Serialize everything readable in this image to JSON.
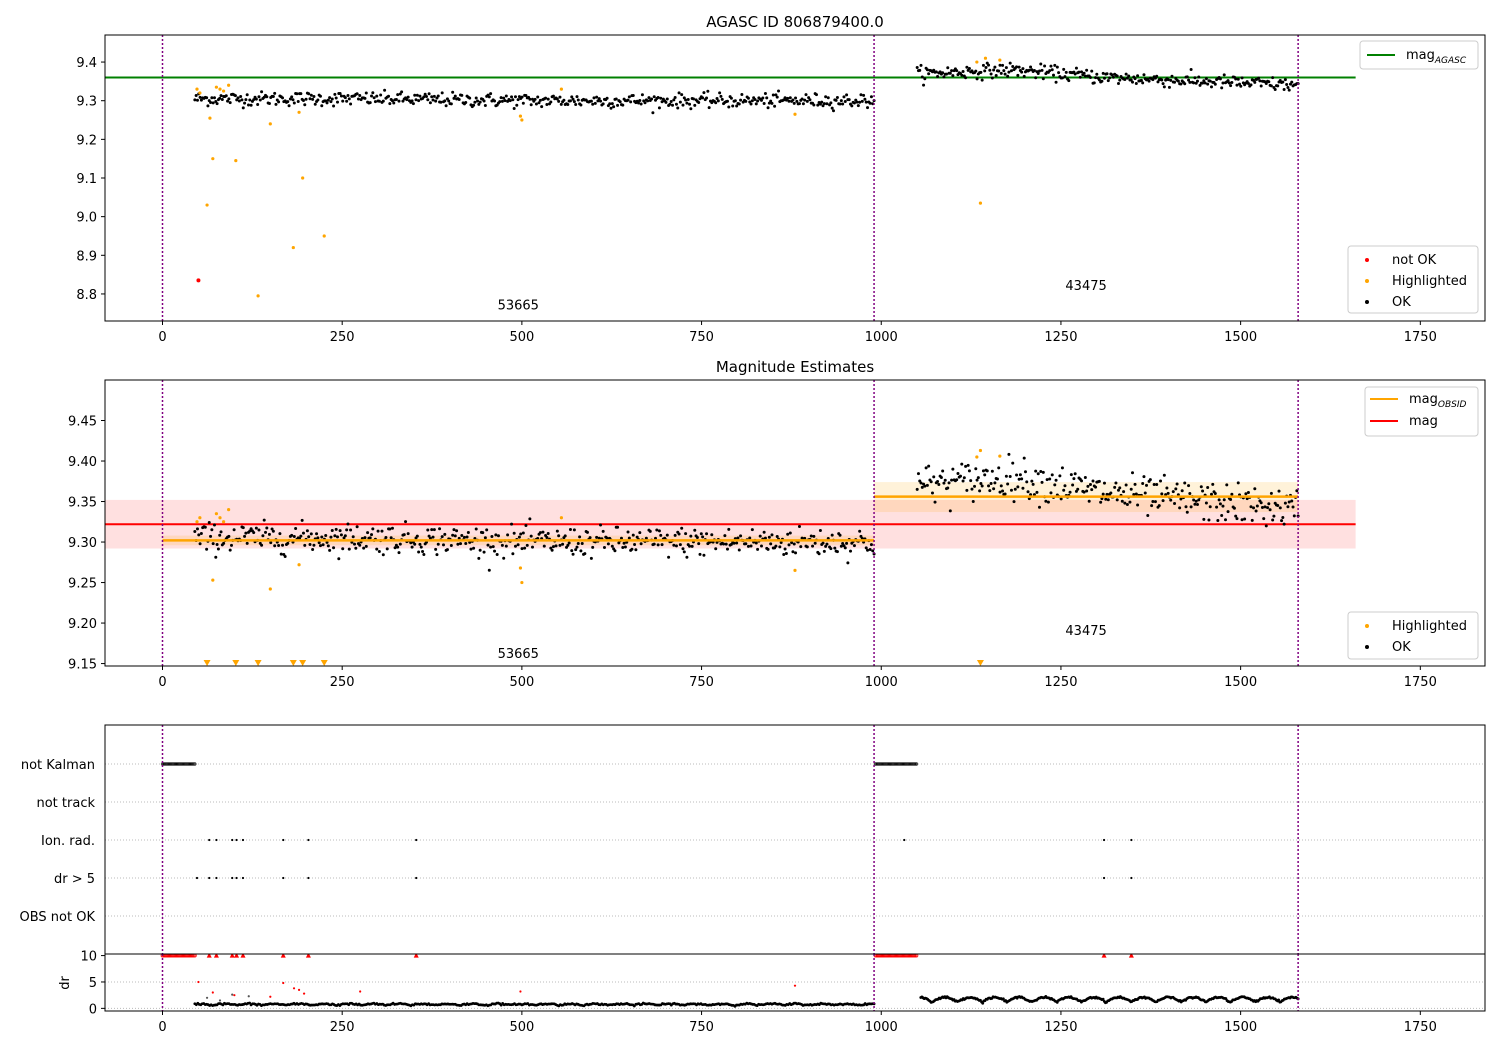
{
  "figure": {
    "title": "AGASC ID 806879400.0"
  },
  "colors": {
    "ok": "#000000",
    "highlighted": "#ffa500",
    "not_ok": "#ff0000",
    "agasc_line": "#008000",
    "obsid_line": "#ffa500",
    "mag_line": "#ff0000",
    "obs_boundary": "#800080"
  },
  "chart_data": [
    {
      "id": "agasc",
      "type": "scatter",
      "title": "",
      "xlim": [
        -80,
        1840
      ],
      "ylim": [
        8.73,
        9.47
      ],
      "xticks": [
        0,
        250,
        500,
        750,
        1000,
        1250,
        1500,
        1750
      ],
      "yticks": [
        8.8,
        8.9,
        9.0,
        9.1,
        9.2,
        9.3,
        9.4
      ],
      "ytick_labels": [
        "8.8",
        "8.9",
        "9.0",
        "9.1",
        "9.2",
        "9.3",
        "9.4"
      ],
      "obs_boundaries": [
        0,
        990,
        1580
      ],
      "obs_labels": [
        {
          "label": "53665",
          "x": 495,
          "y": 8.76
        },
        {
          "label": "43475",
          "x": 1285,
          "y": 8.81
        }
      ],
      "lines": [
        {
          "name": "mag_AGASC",
          "color": "#008000",
          "x": [
            -80,
            1660
          ],
          "y": [
            9.36,
            9.36
          ]
        }
      ],
      "ok_segments": [
        {
          "x_start": 45,
          "x_end": 990,
          "n": 520,
          "mean": 9.3,
          "sd": 0.009,
          "trend": [
            9.305,
            9.305,
            9.3,
            9.3,
            9.3
          ]
        },
        {
          "x_start": 1050,
          "x_end": 1580,
          "n": 300,
          "mean": 9.35,
          "sd": 0.009,
          "trend": [
            9.37,
            9.38,
            9.36,
            9.35,
            9.34
          ]
        }
      ],
      "highlighted": {
        "x": [
          48,
          52,
          62,
          66,
          70,
          75,
          80,
          85,
          92,
          102,
          133,
          150,
          182,
          190,
          195,
          225,
          498,
          500,
          555,
          880,
          1133,
          1138,
          1145,
          1165
        ],
        "y": [
          9.33,
          9.32,
          9.03,
          9.255,
          9.15,
          9.335,
          9.33,
          9.325,
          9.34,
          9.145,
          8.795,
          9.24,
          8.92,
          9.27,
          9.1,
          8.95,
          9.26,
          9.25,
          9.33,
          9.265,
          9.4,
          9.035,
          9.41,
          9.405
        ]
      },
      "not_ok": {
        "x": [
          50
        ],
        "y": [
          8.835
        ]
      },
      "legend": [
        {
          "name": "mag",
          "subscript": "AGASC",
          "kind": "line",
          "color": "#008000"
        },
        {
          "name": "not OK",
          "kind": "dot",
          "color": "#ff0000"
        },
        {
          "name": "Highlighted",
          "kind": "dot",
          "color": "#ffa500"
        },
        {
          "name": "OK",
          "kind": "dot",
          "color": "#000000"
        }
      ]
    },
    {
      "id": "estimates",
      "type": "scatter",
      "title": "Magnitude Estimates",
      "xlim": [
        -80,
        1840
      ],
      "ylim": [
        9.147,
        9.5
      ],
      "xticks": [
        0,
        250,
        500,
        750,
        1000,
        1250,
        1500,
        1750
      ],
      "yticks": [
        9.15,
        9.2,
        9.25,
        9.3,
        9.35,
        9.4,
        9.45
      ],
      "ytick_labels": [
        "9.15",
        "9.20",
        "9.25",
        "9.30",
        "9.35",
        "9.40",
        "9.45"
      ],
      "obs_boundaries": [
        0,
        990,
        1580
      ],
      "obs_labels": [
        {
          "label": "53665",
          "x": 495,
          "y": 9.157
        },
        {
          "label": "43475",
          "x": 1285,
          "y": 9.185
        }
      ],
      "mag_band": {
        "x": [
          -80,
          1660
        ],
        "mean": 9.322,
        "lo": 9.292,
        "hi": 9.352
      },
      "obsid_lines": [
        {
          "x": [
            0,
            990
          ],
          "mean": 9.302,
          "lo": 9.296,
          "hi": 9.308
        },
        {
          "x": [
            990,
            1580
          ],
          "mean": 9.356,
          "lo": 9.337,
          "hi": 9.374
        }
      ],
      "ok_segments": [
        {
          "x_start": 45,
          "x_end": 990,
          "n": 520,
          "mean": 9.3,
          "sd": 0.009,
          "trend": [
            9.305,
            9.305,
            9.3,
            9.3,
            9.3
          ]
        },
        {
          "x_start": 1050,
          "x_end": 1580,
          "n": 300,
          "mean": 9.35,
          "sd": 0.012,
          "trend": [
            9.37,
            9.38,
            9.36,
            9.35,
            9.34
          ]
        }
      ],
      "highlighted": {
        "x": [
          48,
          52,
          70,
          75,
          80,
          85,
          92,
          150,
          190,
          498,
          500,
          555,
          880,
          1133,
          1138,
          1165
        ],
        "y": [
          9.325,
          9.33,
          9.253,
          9.335,
          9.33,
          9.325,
          9.34,
          9.242,
          9.272,
          9.268,
          9.25,
          9.33,
          9.265,
          9.405,
          9.413,
          9.406
        ]
      },
      "lower_limits_x": [
        62,
        102,
        133,
        182,
        195,
        225,
        1138
      ],
      "legend_lines": [
        {
          "name": "mag",
          "subscript": "OBSID",
          "color": "#ffa500"
        },
        {
          "name": "mag",
          "color": "#ff0000"
        }
      ],
      "legend_points": [
        {
          "name": "Highlighted",
          "color": "#ffa500"
        },
        {
          "name": "OK",
          "color": "#000000"
        }
      ]
    },
    {
      "id": "flags",
      "type": "scatter",
      "title": "",
      "xlim": [
        -80,
        1840
      ],
      "categories": [
        "not Kalman",
        "not track",
        "Ion. rad.",
        "dr > 5",
        "OBS not OK"
      ],
      "obs_boundaries": [
        0,
        990,
        1580
      ],
      "flag_points": [
        {
          "category": "not Kalman",
          "ranges": [
            [
              0,
              45
            ],
            [
              992,
              1050
            ]
          ]
        },
        {
          "category": "not track",
          "ranges": []
        },
        {
          "category": "Ion. rad.",
          "x": [
            65,
            75,
            97,
            103,
            112,
            168,
            203,
            353,
            1032,
            1310,
            1348
          ]
        },
        {
          "category": "dr > 5",
          "x": [
            48,
            65,
            75,
            97,
            103,
            112,
            168,
            203,
            353,
            1310,
            1348
          ]
        },
        {
          "category": "OBS not OK",
          "x": []
        }
      ]
    },
    {
      "id": "dr",
      "type": "scatter",
      "title": "",
      "xlim": [
        -80,
        1840
      ],
      "ylim": [
        -0.5,
        10.3
      ],
      "ylabel": "dr",
      "yticks": [
        0,
        5,
        10
      ],
      "ytick_labels": [
        "0",
        "5",
        "10"
      ],
      "xticks": [
        0,
        250,
        500,
        750,
        1000,
        1250,
        1500,
        1750
      ],
      "obs_boundaries": [
        0,
        990,
        1580
      ],
      "clipped_x": [
        0,
        45,
        992,
        1050
      ],
      "clipped_marks_x": [
        65,
        75,
        97,
        103,
        112,
        168,
        203,
        353,
        1310,
        1348
      ],
      "red_points": {
        "x": [
          50,
          70,
          100,
          150,
          168,
          183,
          190,
          197,
          275,
          498,
          880
        ],
        "y": [
          5.0,
          3.0,
          2.5,
          2.2,
          4.8,
          3.8,
          3.5,
          2.8,
          3.2,
          3.2,
          4.3
        ]
      },
      "gray_points": {
        "x": [
          62,
          80,
          97,
          120
        ],
        "y": [
          2.0,
          1.5,
          2.6,
          2.3
        ]
      },
      "ok_segments": [
        {
          "x_start": 45,
          "x_end": 990,
          "n": 460,
          "base": 0.6,
          "amp": 0.25
        },
        {
          "x_start": 1055,
          "x_end": 1580,
          "n": 330,
          "base": 1.2,
          "amp": 0.9
        }
      ]
    }
  ],
  "xtick_labels": [
    "0",
    "250",
    "500",
    "750",
    "1000",
    "1250",
    "1500",
    "1750"
  ]
}
